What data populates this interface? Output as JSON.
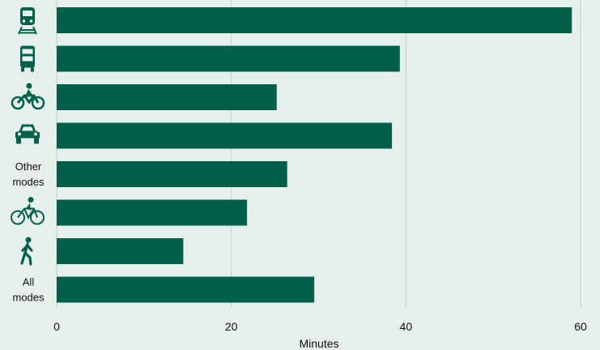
{
  "chart_data": {
    "type": "bar",
    "orientation": "horizontal",
    "categories": [
      {
        "icon": "train-icon"
      },
      {
        "icon": "bus-icon"
      },
      {
        "icon": "motorcycle-icon"
      },
      {
        "icon": "car-icon"
      },
      {
        "label": [
          "Other",
          "modes"
        ]
      },
      {
        "icon": "bicycle-icon"
      },
      {
        "icon": "walking-icon"
      },
      {
        "label": [
          "All",
          "modes"
        ]
      }
    ],
    "values": [
      59,
      39.3,
      25.2,
      38.4,
      26.4,
      21.8,
      14.5,
      29.5
    ],
    "xlabel": "Minutes",
    "xlim": [
      0,
      60
    ],
    "xticks": [
      0,
      20,
      40,
      60
    ],
    "grid": "vertical",
    "colors": {
      "bar": "#006148",
      "grid": "#c3ccc9",
      "background": "#e6efec",
      "icon": "#006148"
    }
  }
}
